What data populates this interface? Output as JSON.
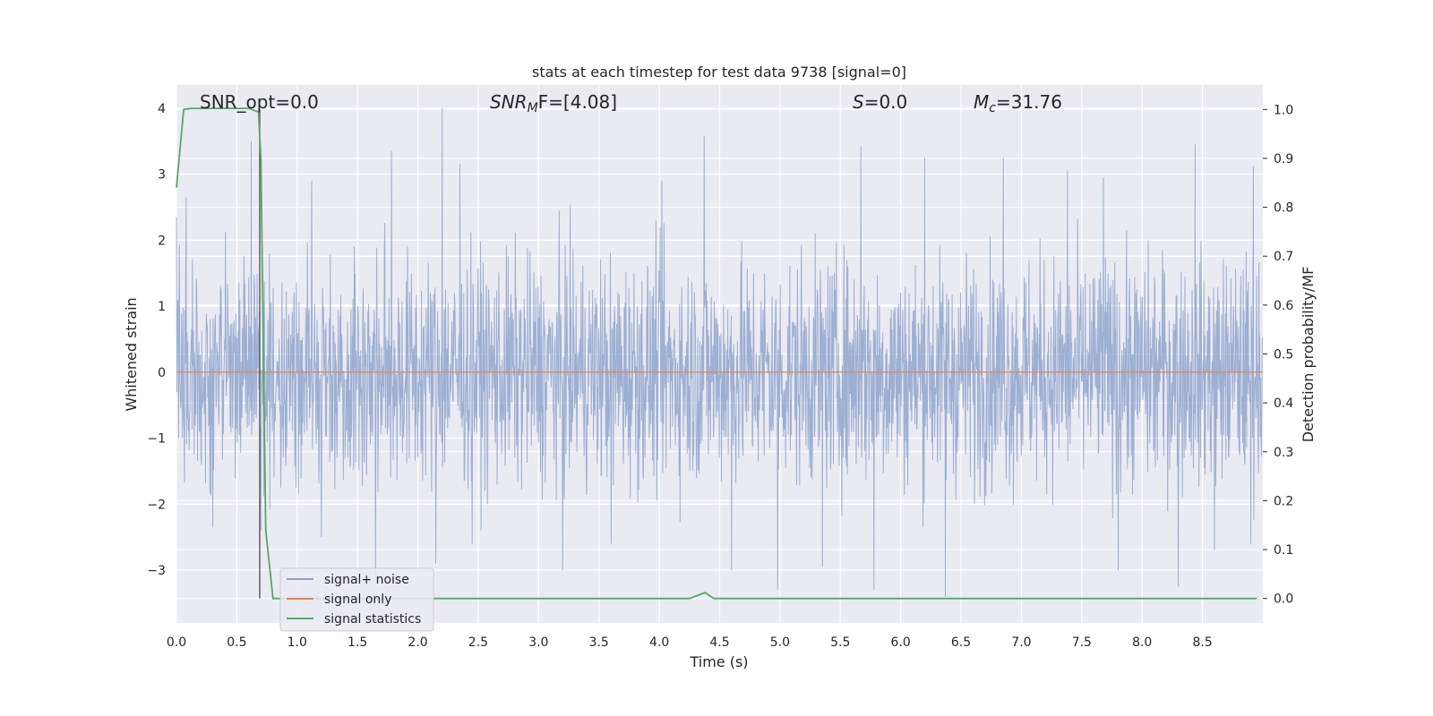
{
  "chart_data": {
    "type": "line",
    "title": "stats at each timestep for test data 9738 [signal=0]",
    "xlabel": "Time (s)",
    "ylabel_left": "Whitened strain",
    "ylabel_right": "Detection probability/MF",
    "xlim": [
      0.0,
      9.0
    ],
    "ylim_left": [
      -3.8,
      4.35
    ],
    "ylim_right": [
      -0.05,
      1.05
    ],
    "x_ticks": [
      "0.0",
      "0.5",
      "1.0",
      "1.5",
      "2.0",
      "2.5",
      "3.0",
      "3.5",
      "4.0",
      "4.5",
      "5.0",
      "5.5",
      "6.0",
      "6.5",
      "7.0",
      "7.5",
      "8.0",
      "8.5"
    ],
    "y_ticks_left": [
      "−3",
      "−2",
      "−1",
      "0",
      "1",
      "2",
      "3",
      "4"
    ],
    "y_ticks_right": [
      "0.0",
      "0.1",
      "0.2",
      "0.3",
      "0.4",
      "0.5",
      "0.6",
      "0.7",
      "0.8",
      "0.9",
      "1.0"
    ],
    "grid": true,
    "legend_placement": "lower-left",
    "annotations": {
      "snr_opt": "SNR_opt=0.0",
      "snr_mf_main": "SNR",
      "snr_mf_sub": "M",
      "snr_mf_rest": "F=[4.08]",
      "s_main": "S",
      "s_rest": "=0.0",
      "mc_main": "M",
      "mc_sub": "c",
      "mc_rest": "=31.76"
    },
    "vline_x": 0.69,
    "series": [
      {
        "name": "signal+ noise",
        "color": "#8fa4cc",
        "description_envelope": "noise band approximately between -2.4 and 2.6 with spikes up to 4.0 and down to -3.4",
        "peaks": [
          [
            0.0,
            2.35
          ],
          [
            0.08,
            2.65
          ],
          [
            0.62,
            3.5
          ],
          [
            0.7,
            2.85
          ],
          [
            1.12,
            2.9
          ],
          [
            1.78,
            3.35
          ],
          [
            2.2,
            4.0
          ],
          [
            2.35,
            3.15
          ],
          [
            3.2,
            3.1
          ],
          [
            4.02,
            2.9
          ],
          [
            4.37,
            3.58
          ],
          [
            5.67,
            3.42
          ],
          [
            6.2,
            3.25
          ],
          [
            6.85,
            3.25
          ],
          [
            7.38,
            3.05
          ],
          [
            7.68,
            2.95
          ],
          [
            8.3,
            3.05
          ],
          [
            8.44,
            3.45
          ],
          [
            8.92,
            3.12
          ]
        ],
        "troughs": [
          [
            0.3,
            -2.35
          ],
          [
            0.7,
            -2.4
          ],
          [
            1.2,
            -2.5
          ],
          [
            1.65,
            -3.2
          ],
          [
            2.15,
            -2.9
          ],
          [
            2.45,
            -2.6
          ],
          [
            3.2,
            -3.0
          ],
          [
            3.6,
            -2.6
          ],
          [
            4.6,
            -3.0
          ],
          [
            4.98,
            -3.3
          ],
          [
            5.35,
            -2.95
          ],
          [
            5.78,
            -3.3
          ],
          [
            6.37,
            -3.4
          ],
          [
            7.8,
            -3.0
          ],
          [
            8.3,
            -3.25
          ],
          [
            8.6,
            -2.7
          ],
          [
            8.9,
            -2.6
          ]
        ]
      },
      {
        "name": "signal only",
        "color": "#dd8452",
        "x": [
          0.0,
          9.0
        ],
        "y": [
          0.0,
          0.0
        ]
      },
      {
        "name": "signal statistics",
        "color": "#55a868",
        "axis": "right",
        "x": [
          0.0,
          0.06,
          0.12,
          0.2,
          0.4,
          0.6,
          0.68,
          0.7,
          0.74,
          0.8,
          1.0,
          2.0,
          3.0,
          4.0,
          4.25,
          4.38,
          4.45,
          5.0,
          6.0,
          7.0,
          8.0,
          8.7,
          8.95
        ],
        "y": [
          0.84,
          1.0,
          1.002,
          1.002,
          1.002,
          1.002,
          0.995,
          0.9,
          0.14,
          0.0,
          0.0,
          0.0,
          0.0,
          0.0,
          0.0,
          0.012,
          0.0,
          0.0,
          0.0,
          0.0,
          0.0,
          0.0,
          0.0
        ]
      }
    ]
  }
}
